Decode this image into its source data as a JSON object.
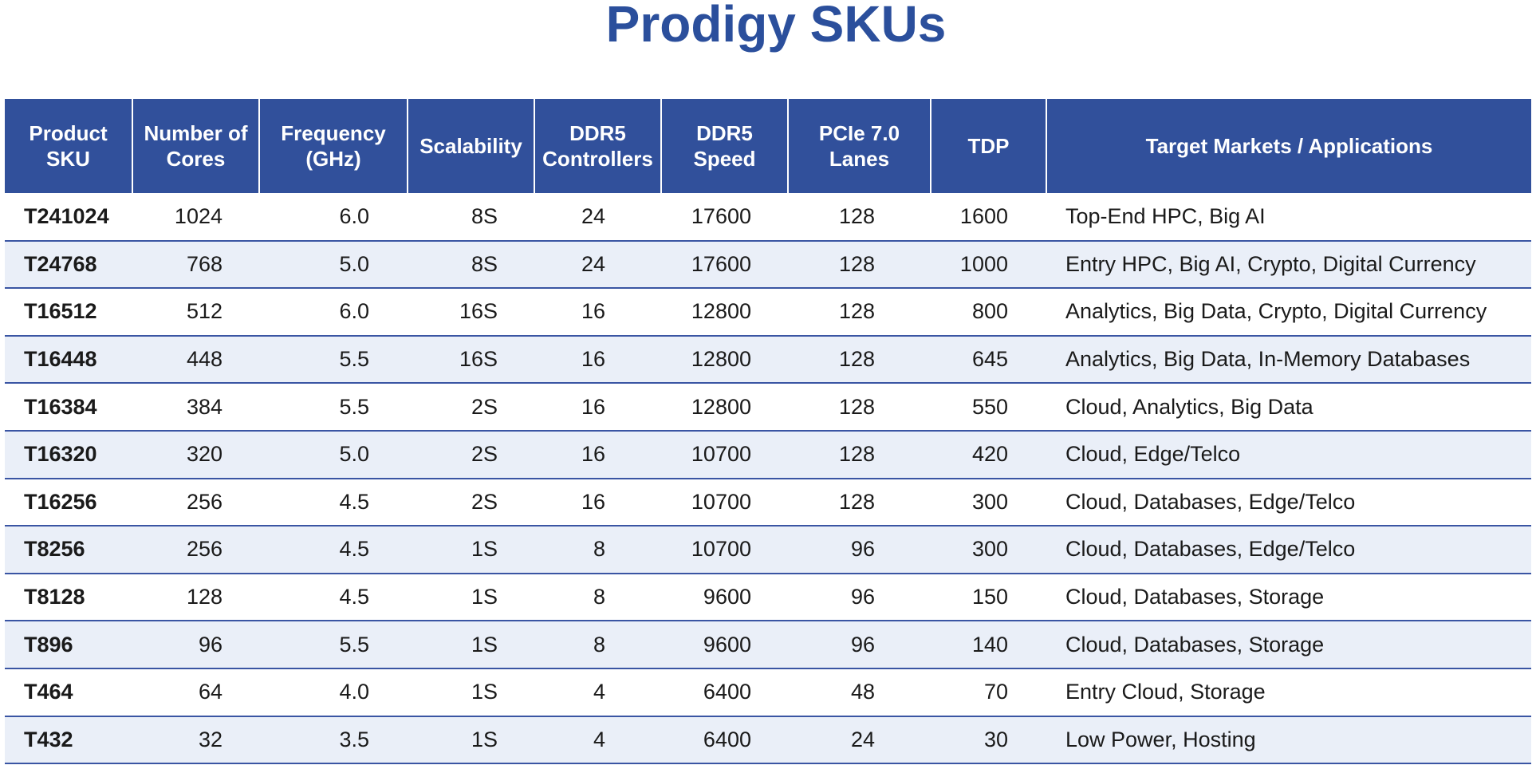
{
  "title": "Prodigy SKUs",
  "columns": [
    "Product SKU",
    "Number of Cores",
    "Frequency (GHz)",
    "Scalability",
    "DDR5 Controllers",
    "DDR5 Speed",
    "PCIe 7.0 Lanes",
    "TDP",
    "Target Markets / Applications"
  ],
  "rows": [
    {
      "sku": "T241024",
      "cores": "1024",
      "freq": "6.0",
      "scal": "8S",
      "ctrl": "24",
      "speed": "17600",
      "lanes": "128",
      "tdp": "1600",
      "market": "Top-End HPC, Big AI"
    },
    {
      "sku": "T24768",
      "cores": "768",
      "freq": "5.0",
      "scal": "8S",
      "ctrl": "24",
      "speed": "17600",
      "lanes": "128",
      "tdp": "1000",
      "market": "Entry HPC, Big AI, Crypto, Digital Currency"
    },
    {
      "sku": "T16512",
      "cores": "512",
      "freq": "6.0",
      "scal": "16S",
      "ctrl": "16",
      "speed": "12800",
      "lanes": "128",
      "tdp": "800",
      "market": "Analytics, Big Data, Crypto, Digital Currency"
    },
    {
      "sku": "T16448",
      "cores": "448",
      "freq": "5.5",
      "scal": "16S",
      "ctrl": "16",
      "speed": "12800",
      "lanes": "128",
      "tdp": "645",
      "market": "Analytics, Big Data, In-Memory Databases"
    },
    {
      "sku": "T16384",
      "cores": "384",
      "freq": "5.5",
      "scal": "2S",
      "ctrl": "16",
      "speed": "12800",
      "lanes": "128",
      "tdp": "550",
      "market": "Cloud, Analytics, Big Data"
    },
    {
      "sku": "T16320",
      "cores": "320",
      "freq": "5.0",
      "scal": "2S",
      "ctrl": "16",
      "speed": "10700",
      "lanes": "128",
      "tdp": "420",
      "market": "Cloud, Edge/Telco"
    },
    {
      "sku": "T16256",
      "cores": "256",
      "freq": "4.5",
      "scal": "2S",
      "ctrl": "16",
      "speed": "10700",
      "lanes": "128",
      "tdp": "300",
      "market": "Cloud, Databases, Edge/Telco"
    },
    {
      "sku": "T8256",
      "cores": "256",
      "freq": "4.5",
      "scal": "1S",
      "ctrl": "8",
      "speed": "10700",
      "lanes": "96",
      "tdp": "300",
      "market": "Cloud, Databases, Edge/Telco"
    },
    {
      "sku": "T8128",
      "cores": "128",
      "freq": "4.5",
      "scal": "1S",
      "ctrl": "8",
      "speed": "9600",
      "lanes": "96",
      "tdp": "150",
      "market": "Cloud, Databases, Storage"
    },
    {
      "sku": "T896",
      "cores": "96",
      "freq": "5.5",
      "scal": "1S",
      "ctrl": "8",
      "speed": "9600",
      "lanes": "96",
      "tdp": "140",
      "market": "Cloud, Databases, Storage"
    },
    {
      "sku": "T464",
      "cores": "64",
      "freq": "4.0",
      "scal": "1S",
      "ctrl": "4",
      "speed": "6400",
      "lanes": "48",
      "tdp": "70",
      "market": "Entry Cloud, Storage"
    },
    {
      "sku": "T432",
      "cores": "32",
      "freq": "3.5",
      "scal": "1S",
      "ctrl": "4",
      "speed": "6400",
      "lanes": "24",
      "tdp": "30",
      "market": "Low Power, Hosting"
    }
  ],
  "colors": {
    "title": "#2b4f9c",
    "header_bg": "#31509b",
    "row_alt_bg": "#eaeff8",
    "row_rule": "#3a55a3"
  }
}
